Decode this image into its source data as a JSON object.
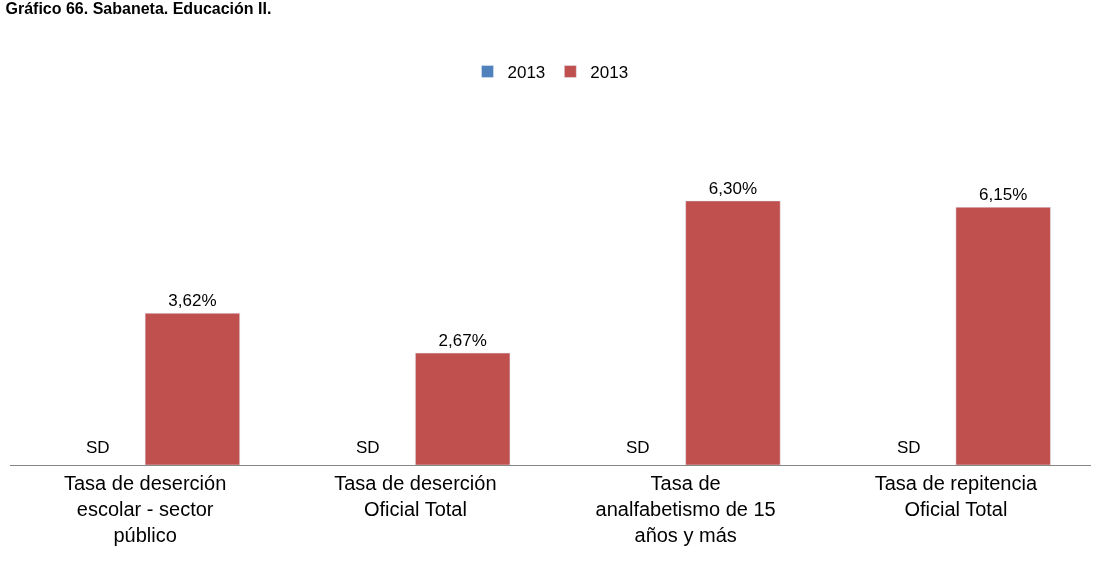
{
  "chart_data": {
    "type": "bar",
    "title": "Gráfico 66. Sabaneta. Educación II.",
    "categories": [
      "Tasa de deserción escolar - sector público",
      "Tasa de deserción Oficial Total",
      "Tasa de analfabetismo de 15 años y más",
      "Tasa de repitencia Oficial Total"
    ],
    "series": [
      {
        "name": "2013",
        "color": "#4f81bd",
        "values": [
          null,
          null,
          null,
          null
        ],
        "value_labels": [
          "SD",
          "SD",
          "SD",
          "SD"
        ]
      },
      {
        "name": "2013",
        "color": "#c0504d",
        "values": [
          3.62,
          2.67,
          6.3,
          6.15
        ],
        "value_labels": [
          "3,62%",
          "2,67%",
          "6,30%",
          "6,15%"
        ]
      }
    ],
    "legend": "top"
  }
}
